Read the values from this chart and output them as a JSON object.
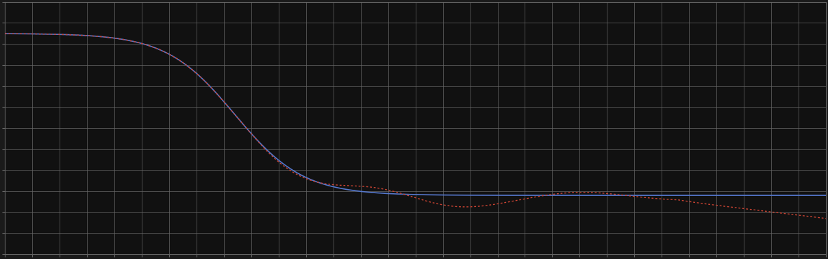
{
  "background_color": "#1a1a1a",
  "plot_bg_color": "#111111",
  "grid_color": "#666666",
  "blue_line_color": "#5577cc",
  "red_line_color": "#cc4433",
  "figsize": [
    12.09,
    3.78
  ],
  "dpi": 100,
  "xlim": [
    0,
    100
  ],
  "ylim": [
    0,
    12
  ],
  "n_points": 600,
  "n_x_grid": 30,
  "n_y_grid": 12
}
